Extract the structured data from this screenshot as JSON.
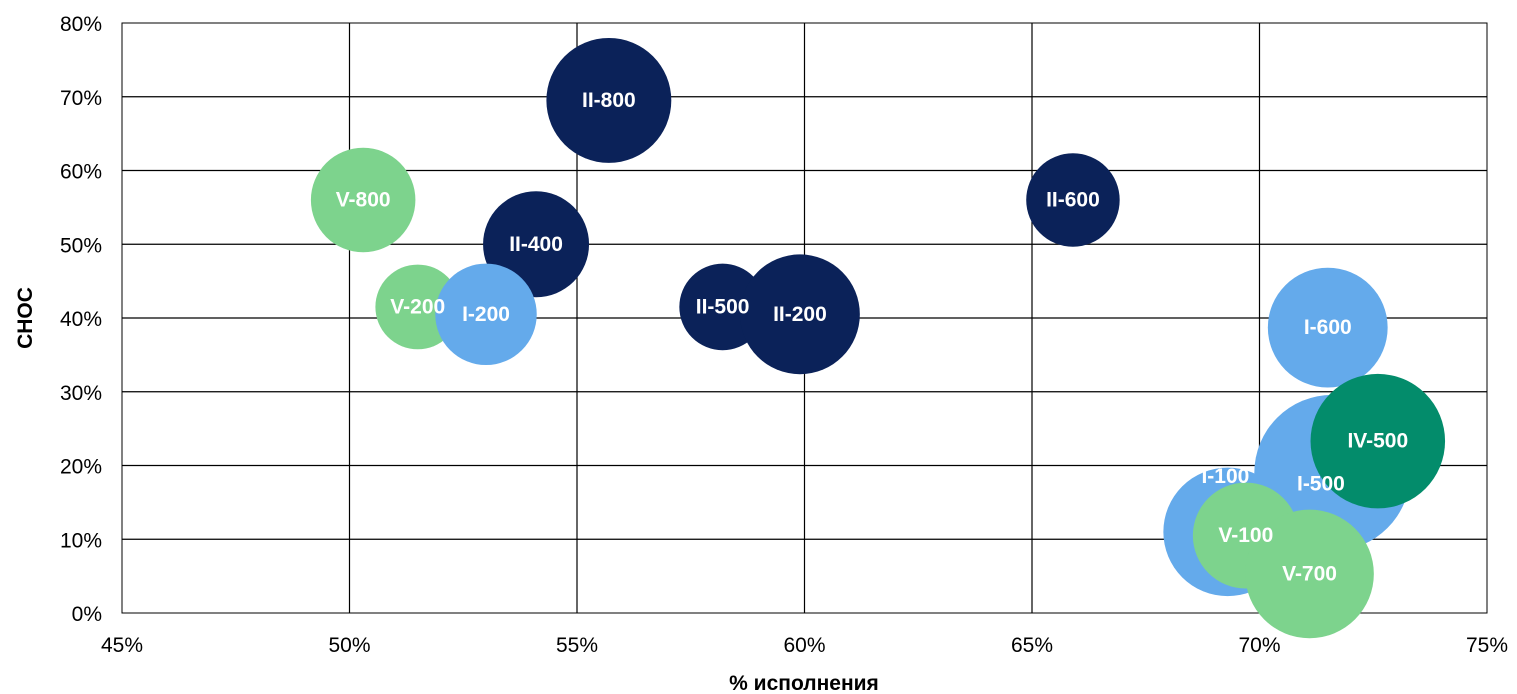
{
  "chart_data": {
    "type": "bubble",
    "title": "",
    "xlabel": "% исполнения",
    "ylabel": "СНОС",
    "xlim": [
      0.45,
      0.75
    ],
    "ylim": [
      0,
      0.8
    ],
    "x_ticks": [
      0.45,
      0.5,
      0.55,
      0.6,
      0.65,
      0.7,
      0.75
    ],
    "y_ticks": [
      0,
      0.1,
      0.2,
      0.3,
      0.4,
      0.5,
      0.6,
      0.7,
      0.8
    ],
    "x_tick_labels": [
      "45%",
      "50%",
      "55%",
      "60%",
      "65%",
      "70%",
      "75%"
    ],
    "y_tick_labels": [
      "0%",
      "10%",
      "20%",
      "30%",
      "40%",
      "50%",
      "60%",
      "70%",
      "80%"
    ],
    "grid": true,
    "legend": "none",
    "colors": {
      "I": "#64aaeb",
      "II": "#0b2259",
      "IV": "#038c6b",
      "V": "#7dd38d"
    },
    "points": [
      {
        "label": "II-800",
        "group": "II",
        "x": 0.557,
        "y": 0.695,
        "size": 50
      },
      {
        "label": "V-800",
        "group": "V",
        "x": 0.503,
        "y": 0.56,
        "size": 35
      },
      {
        "label": "II-600",
        "group": "II",
        "x": 0.659,
        "y": 0.56,
        "size": 28
      },
      {
        "label": "II-400",
        "group": "II",
        "x": 0.541,
        "y": 0.5,
        "size": 36
      },
      {
        "label": "V-200",
        "group": "V",
        "x": 0.515,
        "y": 0.415,
        "size": 23
      },
      {
        "label": "I-200",
        "group": "I",
        "x": 0.53,
        "y": 0.405,
        "size": 33
      },
      {
        "label": "II-500",
        "group": "II",
        "x": 0.582,
        "y": 0.415,
        "size": 24
      },
      {
        "label": "II-200",
        "group": "II",
        "x": 0.599,
        "y": 0.405,
        "size": 46
      },
      {
        "label": "I-600",
        "group": "I",
        "x": 0.715,
        "y": 0.387,
        "size": 46
      },
      {
        "label": "I-500",
        "group": "I",
        "x": 0.716,
        "y": 0.19,
        "size": 78
      },
      {
        "label": "IV-500",
        "group": "IV",
        "x": 0.726,
        "y": 0.233,
        "size": 58
      },
      {
        "label": "I-100",
        "group": "I",
        "x": 0.693,
        "y": 0.11,
        "size": 53
      },
      {
        "label": "V-100",
        "group": "V",
        "x": 0.697,
        "y": 0.105,
        "size": 36
      },
      {
        "label": "V-700",
        "group": "V",
        "x": 0.711,
        "y": 0.053,
        "size": 53
      }
    ]
  }
}
